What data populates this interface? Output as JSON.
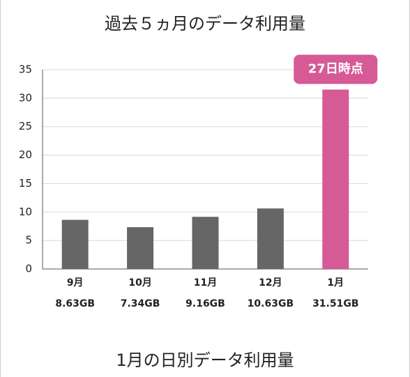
{
  "chart_data": {
    "type": "bar",
    "title": "過去５ヵ月のデータ利用量",
    "categories": [
      "9月",
      "10月",
      "11月",
      "12月",
      "1月"
    ],
    "values": [
      8.63,
      7.34,
      9.16,
      10.63,
      31.51
    ],
    "value_labels": [
      "8.63GB",
      "7.34GB",
      "9.16GB",
      "10.63GB",
      "31.51GB"
    ],
    "colors": [
      "#666666",
      "#666666",
      "#666666",
      "#666666",
      "#d65a96"
    ],
    "ylim": [
      0,
      35
    ],
    "yticks": [
      0,
      5,
      10,
      15,
      20,
      25,
      30,
      35
    ],
    "grid": true,
    "annotation": "27日時点",
    "annotation_color": "#d65a96"
  },
  "next_section": {
    "title": "1月の日別データ利用量"
  }
}
